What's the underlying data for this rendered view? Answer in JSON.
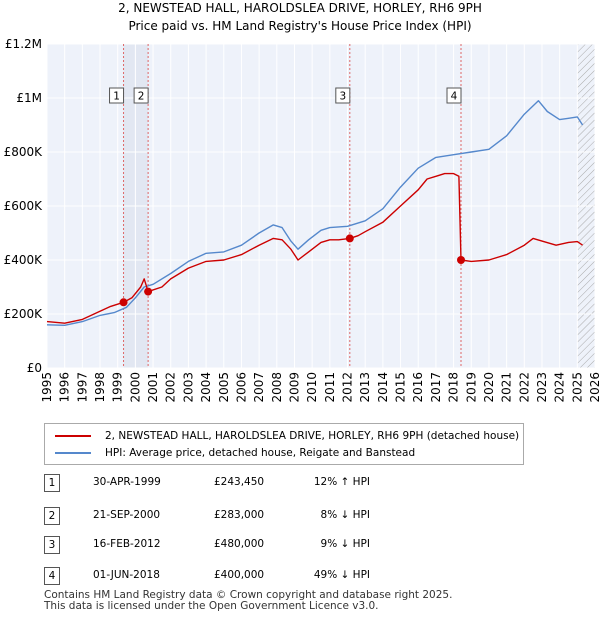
{
  "chart_data": {
    "type": "line",
    "title": "2, NEWSTEAD HALL, HAROLDSLEA DRIVE, HORLEY, RH6 9PH",
    "subtitle": "Price paid vs. HM Land Registry's House Price Index (HPI)",
    "xlabel": "",
    "ylabel": "",
    "xlim": [
      1995,
      2026
    ],
    "ylim": [
      0,
      1200000
    ],
    "y_ticks": [
      {
        "value": 0,
        "label": "£0"
      },
      {
        "value": 200000,
        "label": "£200K"
      },
      {
        "value": 400000,
        "label": "£400K"
      },
      {
        "value": 600000,
        "label": "£600K"
      },
      {
        "value": 800000,
        "label": "£800K"
      },
      {
        "value": 1000000,
        "label": "£1M"
      },
      {
        "value": 1200000,
        "label": "£1.2M"
      }
    ],
    "x_ticks": [
      "1995",
      "1996",
      "1997",
      "1998",
      "1999",
      "2000",
      "2001",
      "2002",
      "2003",
      "2004",
      "2005",
      "2006",
      "2007",
      "2008",
      "2009",
      "2010",
      "2011",
      "2012",
      "2013",
      "2014",
      "2015",
      "2016",
      "2017",
      "2018",
      "2019",
      "2020",
      "2021",
      "2022",
      "2023",
      "2024",
      "2025",
      "2026"
    ],
    "grid": true,
    "series": [
      {
        "name": "2, NEWSTEAD HALL, HAROLDSLEA DRIVE, HORLEY, RH6 9PH (detached house)",
        "color": "#cc0000",
        "points": [
          [
            1995.0,
            172000
          ],
          [
            1996.0,
            166000
          ],
          [
            1997.0,
            180000
          ],
          [
            1998.0,
            210000
          ],
          [
            1998.6,
            228000
          ],
          [
            1999.33,
            243450
          ],
          [
            1999.8,
            260000
          ],
          [
            2000.3,
            300000
          ],
          [
            2000.5,
            330000
          ],
          [
            2000.72,
            283000
          ],
          [
            2001.5,
            300000
          ],
          [
            2002.0,
            330000
          ],
          [
            2003.0,
            370000
          ],
          [
            2004.0,
            395000
          ],
          [
            2005.0,
            400000
          ],
          [
            2006.0,
            420000
          ],
          [
            2007.0,
            455000
          ],
          [
            2007.8,
            480000
          ],
          [
            2008.3,
            475000
          ],
          [
            2008.8,
            440000
          ],
          [
            2009.2,
            400000
          ],
          [
            2009.8,
            430000
          ],
          [
            2010.5,
            465000
          ],
          [
            2011.0,
            475000
          ],
          [
            2011.5,
            475000
          ],
          [
            2012.13,
            480000
          ],
          [
            2012.6,
            490000
          ],
          [
            2013.0,
            505000
          ],
          [
            2014.0,
            540000
          ],
          [
            2015.0,
            600000
          ],
          [
            2016.0,
            660000
          ],
          [
            2016.5,
            700000
          ],
          [
            2017.0,
            710000
          ],
          [
            2017.5,
            720000
          ],
          [
            2018.0,
            720000
          ],
          [
            2018.3,
            710000
          ],
          [
            2018.42,
            400000
          ],
          [
            2019.0,
            395000
          ],
          [
            2020.0,
            400000
          ],
          [
            2021.0,
            420000
          ],
          [
            2022.0,
            455000
          ],
          [
            2022.5,
            480000
          ],
          [
            2023.0,
            470000
          ],
          [
            2023.8,
            455000
          ],
          [
            2024.5,
            465000
          ],
          [
            2025.0,
            468000
          ],
          [
            2025.3,
            455000
          ]
        ]
      },
      {
        "name": "HPI: Average price, detached house, Reigate and Banstead",
        "color": "#5588cc",
        "points": [
          [
            1995.0,
            160000
          ],
          [
            1996.0,
            158000
          ],
          [
            1997.0,
            172000
          ],
          [
            1998.0,
            195000
          ],
          [
            1998.8,
            205000
          ],
          [
            1999.5,
            225000
          ],
          [
            2000.0,
            260000
          ],
          [
            2000.5,
            300000
          ],
          [
            2001.0,
            310000
          ],
          [
            2002.0,
            350000
          ],
          [
            2003.0,
            395000
          ],
          [
            2004.0,
            425000
          ],
          [
            2005.0,
            430000
          ],
          [
            2006.0,
            455000
          ],
          [
            2007.0,
            500000
          ],
          [
            2007.8,
            530000
          ],
          [
            2008.3,
            520000
          ],
          [
            2008.8,
            470000
          ],
          [
            2009.2,
            440000
          ],
          [
            2009.8,
            475000
          ],
          [
            2010.5,
            510000
          ],
          [
            2011.0,
            520000
          ],
          [
            2012.0,
            525000
          ],
          [
            2013.0,
            545000
          ],
          [
            2014.0,
            590000
          ],
          [
            2015.0,
            670000
          ],
          [
            2016.0,
            740000
          ],
          [
            2017.0,
            780000
          ],
          [
            2018.0,
            790000
          ],
          [
            2019.0,
            800000
          ],
          [
            2020.0,
            810000
          ],
          [
            2021.0,
            860000
          ],
          [
            2022.0,
            940000
          ],
          [
            2022.8,
            990000
          ],
          [
            2023.3,
            950000
          ],
          [
            2024.0,
            920000
          ],
          [
            2024.5,
            925000
          ],
          [
            2025.0,
            930000
          ],
          [
            2025.3,
            900000
          ]
        ]
      }
    ],
    "markers": [
      {
        "label": "1",
        "x": 1999.33,
        "y": 243450
      },
      {
        "label": "2",
        "x": 2000.72,
        "y": 283000
      },
      {
        "label": "3",
        "x": 2012.13,
        "y": 480000
      },
      {
        "label": "4",
        "x": 2018.42,
        "y": 400000
      }
    ],
    "shaded_ranges": [
      [
        1999.33,
        2000.72
      ]
    ],
    "hatch_from": 2025.0
  },
  "legend": {
    "property_label": "2, NEWSTEAD HALL, HAROLDSLEA DRIVE, HORLEY, RH6 9PH (detached house)",
    "hpi_label": "HPI: Average price, detached house, Reigate and Banstead"
  },
  "sales": [
    {
      "num": "1",
      "date": "30-APR-1999",
      "price": "£243,450",
      "hpi": "12% ↑ HPI"
    },
    {
      "num": "2",
      "date": "21-SEP-2000",
      "price": "£283,000",
      "hpi": "8% ↓ HPI"
    },
    {
      "num": "3",
      "date": "16-FEB-2012",
      "price": "£480,000",
      "hpi": "9% ↓ HPI"
    },
    {
      "num": "4",
      "date": "01-JUN-2018",
      "price": "£400,000",
      "hpi": "49% ↓ HPI"
    }
  ],
  "footer": {
    "line1": "Contains HM Land Registry data © Crown copyright and database right 2025.",
    "line2": "This data is licensed under the Open Government Licence v3.0."
  }
}
